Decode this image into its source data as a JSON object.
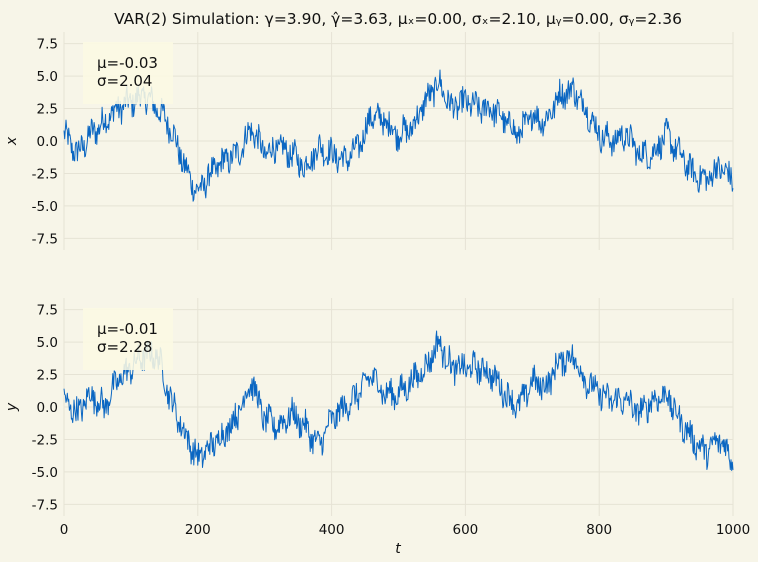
{
  "chart_data": {
    "type": "line",
    "title": "VAR(2) Simulation: γ=3.90, γ̂=3.63, μₓ=0.00, σₓ=2.10, μᵧ=0.00, σᵧ=2.36",
    "xlabel": "t",
    "xlim": [
      0,
      1000
    ],
    "xticks": [
      0,
      200,
      400,
      600,
      800,
      1000
    ],
    "grid": true,
    "line_color": "#0a66c2",
    "background": "#f7f5e8",
    "subplots": [
      {
        "name": "x-panel",
        "ylabel": "x",
        "ylim": [
          -8.4,
          8.4
        ],
        "yticks": [
          -7.5,
          -5.0,
          -2.5,
          0.0,
          2.5,
          5.0,
          7.5
        ],
        "stats": {
          "mean": "μ=-0.03",
          "std": "σ=2.04"
        },
        "series": {
          "t": [
            0,
            20,
            40,
            60,
            80,
            100,
            120,
            140,
            160,
            180,
            200,
            220,
            240,
            260,
            280,
            300,
            320,
            340,
            360,
            380,
            400,
            420,
            440,
            460,
            480,
            500,
            520,
            540,
            560,
            580,
            600,
            620,
            640,
            660,
            680,
            700,
            720,
            740,
            760,
            780,
            800,
            820,
            840,
            860,
            880,
            900,
            920,
            940,
            960,
            980,
            1000
          ],
          "values": [
            0.5,
            -1.0,
            0.5,
            1.5,
            2.5,
            3.0,
            3.5,
            2.5,
            1.0,
            -2.0,
            -4.0,
            -2.5,
            -1.5,
            -1.0,
            1.0,
            -1.0,
            -0.5,
            -1.0,
            -2.0,
            -0.5,
            -1.0,
            -1.5,
            -0.5,
            2.0,
            1.5,
            0.5,
            1.0,
            3.0,
            4.5,
            2.5,
            3.0,
            2.5,
            2.5,
            1.5,
            0.5,
            2.0,
            1.5,
            3.5,
            4.0,
            2.5,
            0.5,
            0.0,
            0.5,
            -1.0,
            -1.0,
            0.5,
            -1.0,
            -2.5,
            -3.0,
            -2.0,
            -3.0
          ]
        }
      },
      {
        "name": "y-panel",
        "ylabel": "y",
        "ylim": [
          -8.4,
          8.4
        ],
        "yticks": [
          -7.5,
          -5.0,
          -2.5,
          0.0,
          2.5,
          5.0,
          7.5
        ],
        "stats": {
          "mean": "μ=-0.01",
          "std": "σ=2.28"
        },
        "series": {
          "t": [
            0,
            20,
            40,
            60,
            80,
            100,
            120,
            140,
            160,
            180,
            200,
            220,
            240,
            260,
            280,
            300,
            320,
            340,
            360,
            380,
            400,
            420,
            440,
            460,
            480,
            500,
            520,
            540,
            560,
            580,
            600,
            620,
            640,
            660,
            680,
            700,
            720,
            740,
            760,
            780,
            800,
            820,
            840,
            860,
            880,
            900,
            920,
            940,
            960,
            980,
            1000
          ],
          "values": [
            0.5,
            -0.5,
            1.0,
            0.0,
            2.0,
            3.0,
            4.0,
            4.0,
            0.5,
            -2.0,
            -4.0,
            -3.0,
            -2.0,
            -0.5,
            2.0,
            -1.0,
            -1.5,
            -0.5,
            -1.5,
            -3.0,
            -1.0,
            0.0,
            1.0,
            2.5,
            1.0,
            1.0,
            2.0,
            3.0,
            5.0,
            3.0,
            3.0,
            3.0,
            2.5,
            1.0,
            0.0,
            2.0,
            1.5,
            3.5,
            4.0,
            2.0,
            1.0,
            0.5,
            0.5,
            -0.5,
            0.5,
            1.0,
            -1.0,
            -2.5,
            -3.5,
            -2.5,
            -4.0
          ]
        }
      }
    ]
  }
}
